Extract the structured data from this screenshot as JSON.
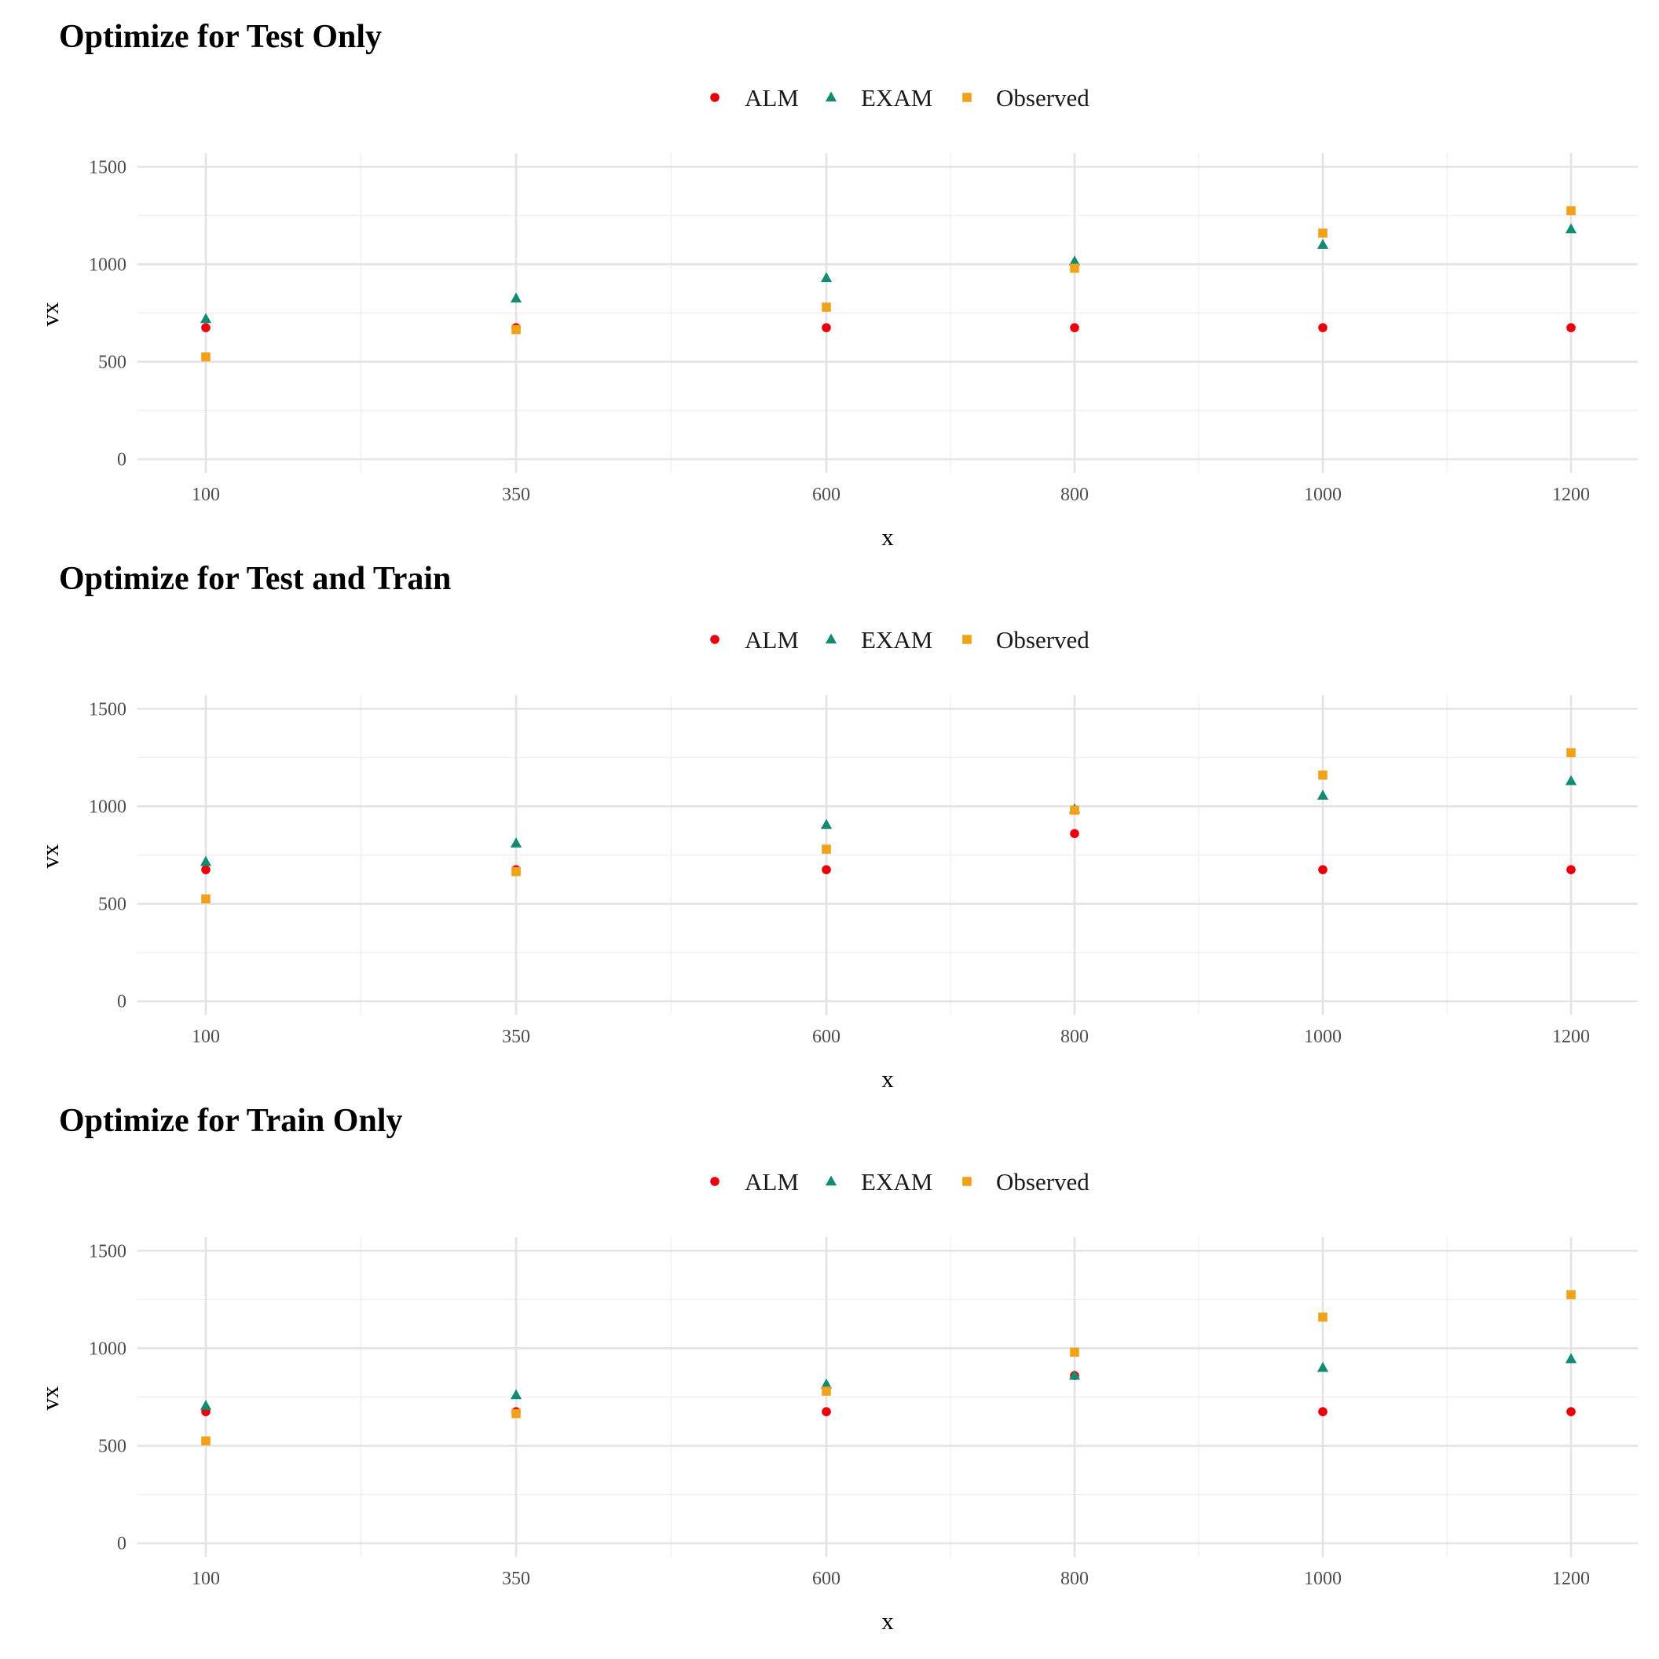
{
  "colors": {
    "ALM": "#e8000b",
    "EXAM": "#138a72",
    "Observed": "#f0a21a",
    "grid_major": "#e3e3e3",
    "grid_minor": "#efefef",
    "tick_text": "#4d4d4d"
  },
  "legend_items": [
    {
      "name": "ALM",
      "marker": "circle"
    },
    {
      "name": "EXAM",
      "marker": "triangle"
    },
    {
      "name": "Observed",
      "marker": "square"
    }
  ],
  "chart_data": [
    {
      "type": "scatter",
      "title": "Optimize for Test Only",
      "xlabel": "x",
      "ylabel": "vx",
      "x": [
        100,
        350,
        600,
        800,
        1000,
        1200
      ],
      "x_tick_labels": [
        "100",
        "350",
        "600",
        "800",
        "1000",
        "1200"
      ],
      "y_ticks": [
        0,
        500,
        1000,
        1500
      ],
      "y_tick_labels": [
        "0",
        "500",
        "1000",
        "1500"
      ],
      "ylim": [
        -70,
        1570
      ],
      "legend_position": "top",
      "grid": true,
      "series": [
        {
          "name": "ALM",
          "marker": "circle",
          "values": [
            675,
            675,
            675,
            675,
            675,
            675
          ]
        },
        {
          "name": "EXAM",
          "marker": "triangle",
          "values": [
            720,
            825,
            930,
            1015,
            1100,
            1180
          ]
        },
        {
          "name": "Observed",
          "marker": "square",
          "values": [
            525,
            665,
            780,
            980,
            1160,
            1275
          ]
        }
      ]
    },
    {
      "type": "scatter",
      "title": "Optimize for Test and Train",
      "xlabel": "x",
      "ylabel": "vx",
      "x": [
        100,
        350,
        600,
        800,
        1000,
        1200
      ],
      "x_tick_labels": [
        "100",
        "350",
        "600",
        "800",
        "1000",
        "1200"
      ],
      "y_ticks": [
        0,
        500,
        1000,
        1500
      ],
      "y_tick_labels": [
        "0",
        "500",
        "1000",
        "1500"
      ],
      "ylim": [
        -70,
        1570
      ],
      "legend_position": "top",
      "grid": true,
      "series": [
        {
          "name": "ALM",
          "marker": "circle",
          "values": [
            675,
            675,
            675,
            860,
            675,
            675
          ]
        },
        {
          "name": "EXAM",
          "marker": "triangle",
          "values": [
            715,
            810,
            905,
            985,
            1055,
            1130
          ]
        },
        {
          "name": "Observed",
          "marker": "square",
          "values": [
            525,
            665,
            780,
            980,
            1160,
            1275
          ]
        }
      ]
    },
    {
      "type": "scatter",
      "title": "Optimize for Train Only",
      "xlabel": "x",
      "ylabel": "vx",
      "x": [
        100,
        350,
        600,
        800,
        1000,
        1200
      ],
      "x_tick_labels": [
        "100",
        "350",
        "600",
        "800",
        "1000",
        "1200"
      ],
      "y_ticks": [
        0,
        500,
        1000,
        1500
      ],
      "y_tick_labels": [
        "0",
        "500",
        "1000",
        "1500"
      ],
      "ylim": [
        -70,
        1570
      ],
      "legend_position": "top",
      "grid": true,
      "series": [
        {
          "name": "ALM",
          "marker": "circle",
          "values": [
            675,
            675,
            675,
            860,
            675,
            675
          ]
        },
        {
          "name": "EXAM",
          "marker": "triangle",
          "values": [
            705,
            760,
            815,
            860,
            900,
            945
          ]
        },
        {
          "name": "Observed",
          "marker": "square",
          "values": [
            525,
            665,
            780,
            980,
            1160,
            1275
          ]
        }
      ]
    }
  ]
}
